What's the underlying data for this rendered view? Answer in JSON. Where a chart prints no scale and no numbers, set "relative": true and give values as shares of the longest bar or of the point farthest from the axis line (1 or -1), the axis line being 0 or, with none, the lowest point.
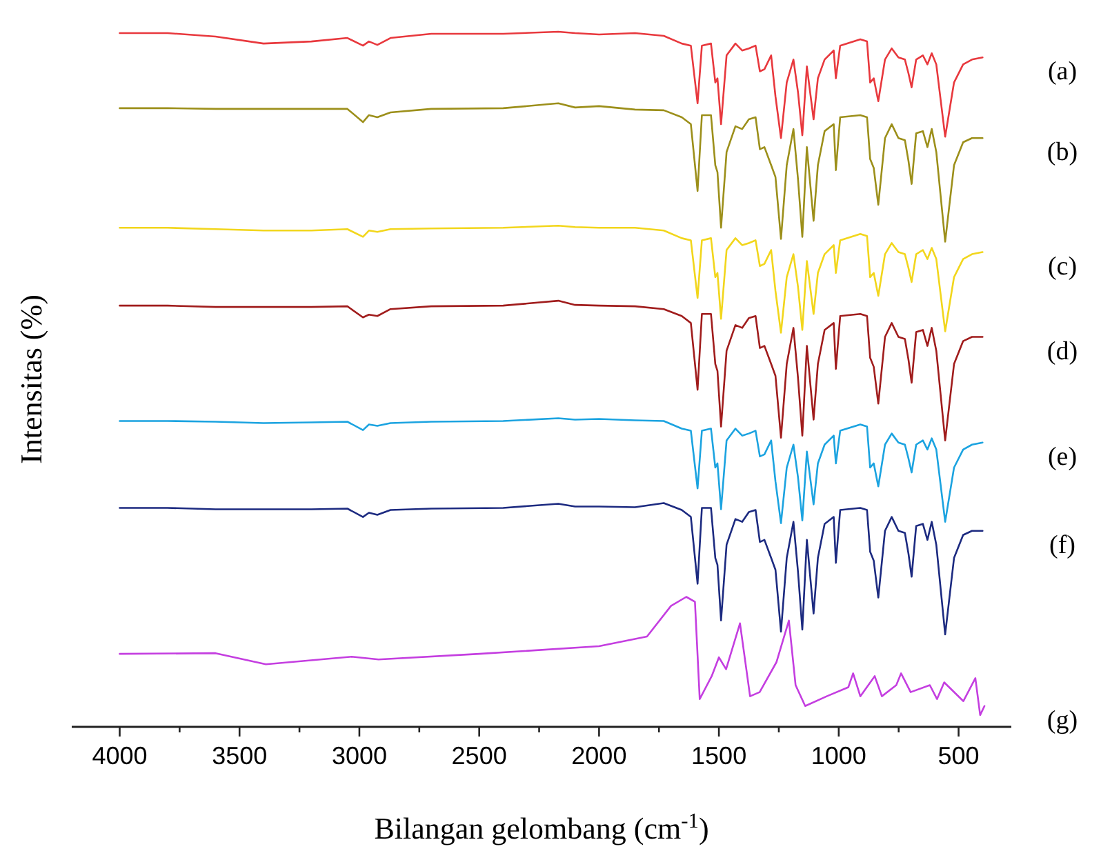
{
  "chart_data": {
    "type": "line",
    "relative": true,
    "xlabel": "Bilangan gelombang (cm$^{-1}$)",
    "ylabel": "Intensitas (%)",
    "xlim": [
      4200,
      280
    ],
    "xticks": [
      4000,
      {
        "value": 3750,
        "label": null
      },
      3500,
      {
        "value": 3250,
        "label": null
      },
      3000,
      {
        "value": 2750,
        "label": null
      },
      2500,
      {
        "value": 2250,
        "label": null
      },
      2000,
      {
        "value": 1750,
        "label": null
      },
      1500,
      {
        "value": 1250,
        "label": null
      },
      1000,
      {
        "value": 750,
        "label": null
      },
      500
    ],
    "x": [
      4000,
      3800,
      3600,
      3400,
      3200,
      3050,
      2985,
      2960,
      2925,
      2870,
      2700,
      2400,
      2170,
      2100,
      2000,
      1850,
      1730,
      1655,
      1617,
      1589,
      1571,
      1533,
      1515,
      1506,
      1491,
      1468,
      1431,
      1403,
      1375,
      1347,
      1329,
      1310,
      1282,
      1264,
      1241,
      1217,
      1189,
      1170,
      1152,
      1133,
      1105,
      1087,
      1059,
      1021,
      1012,
      994,
      910,
      882,
      869,
      854,
      835,
      807,
      779,
      751,
      724,
      709,
      696,
      677,
      649,
      630,
      612,
      593,
      556,
      519,
      481,
      444,
      400
    ],
    "series": [
      {
        "name": "(a)",
        "color": "#e8383d",
        "values": [
          0.998,
          0.998,
          0.993,
          0.983,
          0.986,
          0.991,
          0.98,
          0.986,
          0.981,
          0.991,
          0.997,
          0.997,
          1.0,
          0.998,
          0.996,
          0.998,
          0.994,
          0.983,
          0.98,
          0.897,
          0.98,
          0.983,
          0.927,
          0.933,
          0.867,
          0.966,
          0.983,
          0.973,
          0.976,
          0.98,
          0.943,
          0.946,
          0.966,
          0.907,
          0.847,
          0.927,
          0.96,
          0.913,
          0.851,
          0.95,
          0.874,
          0.933,
          0.96,
          0.973,
          0.933,
          0.98,
          0.989,
          0.986,
          0.927,
          0.933,
          0.9,
          0.96,
          0.976,
          0.963,
          0.96,
          0.94,
          0.92,
          0.96,
          0.966,
          0.953,
          0.969,
          0.953,
          0.849,
          0.927,
          0.953,
          0.96,
          0.963
        ]
      },
      {
        "name": "(b)",
        "color": "#9c8f1a",
        "values": [
          0.89,
          0.89,
          0.889,
          0.889,
          0.889,
          0.889,
          0.87,
          0.88,
          0.877,
          0.884,
          0.889,
          0.89,
          0.897,
          0.891,
          0.893,
          0.888,
          0.887,
          0.877,
          0.867,
          0.771,
          0.88,
          0.88,
          0.808,
          0.798,
          0.718,
          0.827,
          0.864,
          0.86,
          0.874,
          0.877,
          0.831,
          0.834,
          0.808,
          0.791,
          0.702,
          0.808,
          0.86,
          0.788,
          0.705,
          0.834,
          0.728,
          0.808,
          0.857,
          0.867,
          0.801,
          0.877,
          0.88,
          0.877,
          0.817,
          0.804,
          0.751,
          0.847,
          0.867,
          0.847,
          0.844,
          0.814,
          0.781,
          0.854,
          0.857,
          0.834,
          0.86,
          0.827,
          0.698,
          0.808,
          0.841,
          0.847,
          0.847
        ]
      },
      {
        "name": "(c)",
        "color": "#f2d61c",
        "values": [
          0.718,
          0.718,
          0.716,
          0.714,
          0.714,
          0.716,
          0.705,
          0.714,
          0.712,
          0.716,
          0.717,
          0.718,
          0.721,
          0.719,
          0.718,
          0.718,
          0.714,
          0.703,
          0.7,
          0.617,
          0.7,
          0.703,
          0.647,
          0.653,
          0.587,
          0.686,
          0.703,
          0.693,
          0.696,
          0.7,
          0.663,
          0.666,
          0.686,
          0.627,
          0.567,
          0.647,
          0.68,
          0.633,
          0.571,
          0.67,
          0.594,
          0.653,
          0.68,
          0.693,
          0.653,
          0.7,
          0.709,
          0.706,
          0.647,
          0.653,
          0.62,
          0.68,
          0.696,
          0.683,
          0.68,
          0.66,
          0.64,
          0.68,
          0.686,
          0.673,
          0.689,
          0.673,
          0.569,
          0.647,
          0.673,
          0.68,
          0.683
        ]
      },
      {
        "name": "(d)",
        "color": "#a01c1c",
        "values": [
          0.606,
          0.606,
          0.604,
          0.604,
          0.604,
          0.605,
          0.589,
          0.593,
          0.591,
          0.601,
          0.605,
          0.606,
          0.613,
          0.607,
          0.606,
          0.605,
          0.601,
          0.591,
          0.581,
          0.485,
          0.594,
          0.594,
          0.522,
          0.512,
          0.432,
          0.541,
          0.578,
          0.574,
          0.588,
          0.591,
          0.545,
          0.548,
          0.522,
          0.505,
          0.416,
          0.522,
          0.574,
          0.502,
          0.419,
          0.548,
          0.442,
          0.522,
          0.571,
          0.581,
          0.515,
          0.591,
          0.594,
          0.591,
          0.531,
          0.518,
          0.465,
          0.561,
          0.581,
          0.561,
          0.558,
          0.528,
          0.495,
          0.568,
          0.571,
          0.548,
          0.574,
          0.541,
          0.412,
          0.522,
          0.555,
          0.561,
          0.561
        ]
      },
      {
        "name": "(e)",
        "color": "#1ba3e0",
        "values": [
          0.44,
          0.44,
          0.439,
          0.437,
          0.438,
          0.439,
          0.427,
          0.435,
          0.433,
          0.437,
          0.439,
          0.44,
          0.444,
          0.442,
          0.443,
          0.441,
          0.44,
          0.429,
          0.426,
          0.343,
          0.426,
          0.429,
          0.373,
          0.379,
          0.313,
          0.412,
          0.429,
          0.419,
          0.422,
          0.426,
          0.389,
          0.392,
          0.412,
          0.353,
          0.293,
          0.373,
          0.406,
          0.359,
          0.297,
          0.396,
          0.32,
          0.379,
          0.406,
          0.419,
          0.379,
          0.426,
          0.435,
          0.432,
          0.373,
          0.379,
          0.346,
          0.406,
          0.422,
          0.409,
          0.406,
          0.386,
          0.366,
          0.406,
          0.412,
          0.399,
          0.415,
          0.399,
          0.295,
          0.373,
          0.399,
          0.406,
          0.409
        ]
      },
      {
        "name": "(f)",
        "color": "#1c2a80",
        "values": [
          0.315,
          0.315,
          0.313,
          0.313,
          0.313,
          0.314,
          0.302,
          0.308,
          0.305,
          0.312,
          0.314,
          0.315,
          0.321,
          0.317,
          0.317,
          0.316,
          0.322,
          0.312,
          0.302,
          0.206,
          0.315,
          0.315,
          0.243,
          0.233,
          0.153,
          0.262,
          0.299,
          0.295,
          0.309,
          0.312,
          0.266,
          0.269,
          0.243,
          0.226,
          0.137,
          0.243,
          0.295,
          0.223,
          0.14,
          0.269,
          0.163,
          0.243,
          0.292,
          0.302,
          0.236,
          0.312,
          0.315,
          0.312,
          0.252,
          0.239,
          0.186,
          0.282,
          0.302,
          0.282,
          0.279,
          0.249,
          0.216,
          0.289,
          0.292,
          0.269,
          0.295,
          0.262,
          0.133,
          0.243,
          0.276,
          0.282,
          0.282
        ]
      },
      {
        "name": "(g)",
        "color": "#c43ee0",
        "x": [
          4000,
          3600,
          3390,
          3032,
          2920,
          2500,
          2000,
          1800,
          1700,
          1636,
          1600,
          1580,
          1530,
          1500,
          1470,
          1412,
          1370,
          1330,
          1260,
          1208,
          1180,
          1140,
          1050,
          960,
          940,
          910,
          850,
          820,
          760,
          740,
          700,
          620,
          590,
          560,
          480,
          430,
          410,
          392
        ],
        "values": [
          0.105,
          0.106,
          0.09,
          0.101,
          0.097,
          0.105,
          0.116,
          0.13,
          0.174,
          0.187,
          0.18,
          0.04,
          0.073,
          0.1,
          0.083,
          0.149,
          0.044,
          0.05,
          0.093,
          0.153,
          0.06,
          0.03,
          0.044,
          0.057,
          0.077,
          0.044,
          0.073,
          0.044,
          0.06,
          0.077,
          0.05,
          0.06,
          0.04,
          0.064,
          0.037,
          0.07,
          0.017,
          0.03
        ]
      }
    ]
  }
}
